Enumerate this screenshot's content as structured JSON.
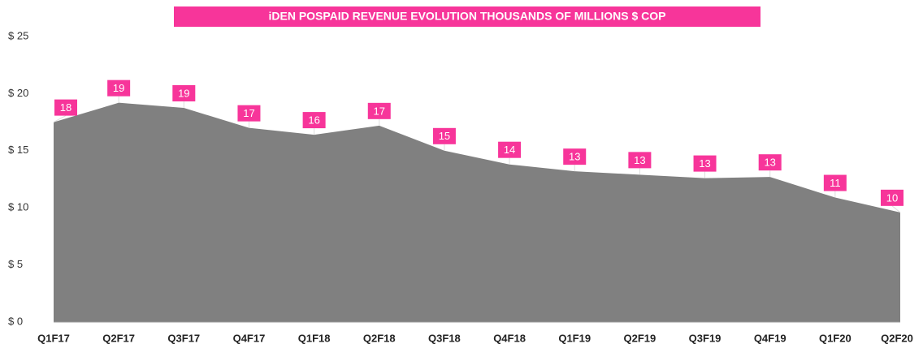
{
  "chart_data": {
    "type": "area",
    "title": "iDEN POSPAID REVENUE EVOLUTION THOUSANDS OF MILLIONS $ COP",
    "categories": [
      "Q1F17",
      "Q2F17",
      "Q3F17",
      "Q4F17",
      "Q1F18",
      "Q2F18",
      "Q3F18",
      "Q4F18",
      "Q1F19",
      "Q2F19",
      "Q3F19",
      "Q4F19",
      "Q1F20",
      "Q2F20"
    ],
    "values": [
      17.5,
      19.2,
      18.75,
      17.0,
      16.4,
      17.2,
      15.0,
      13.8,
      13.2,
      12.9,
      12.6,
      12.7,
      10.9,
      9.6
    ],
    "value_labels": [
      "18",
      "19",
      "19",
      "17",
      "16",
      "17",
      "15",
      "14",
      "13",
      "13",
      "13",
      "13",
      "11",
      "10"
    ],
    "color": "#808080",
    "label_color": "#f7359a",
    "ylim": [
      0,
      25
    ],
    "yticks": [
      {
        "value": 0,
        "label": "$ 0"
      },
      {
        "value": 5,
        "label": "$ 5"
      },
      {
        "value": 10,
        "label": "$ 10"
      },
      {
        "value": 15,
        "label": "$ 15"
      },
      {
        "value": 20,
        "label": "$ 20"
      },
      {
        "value": 25,
        "label": "$ 25"
      }
    ],
    "grid": false
  }
}
